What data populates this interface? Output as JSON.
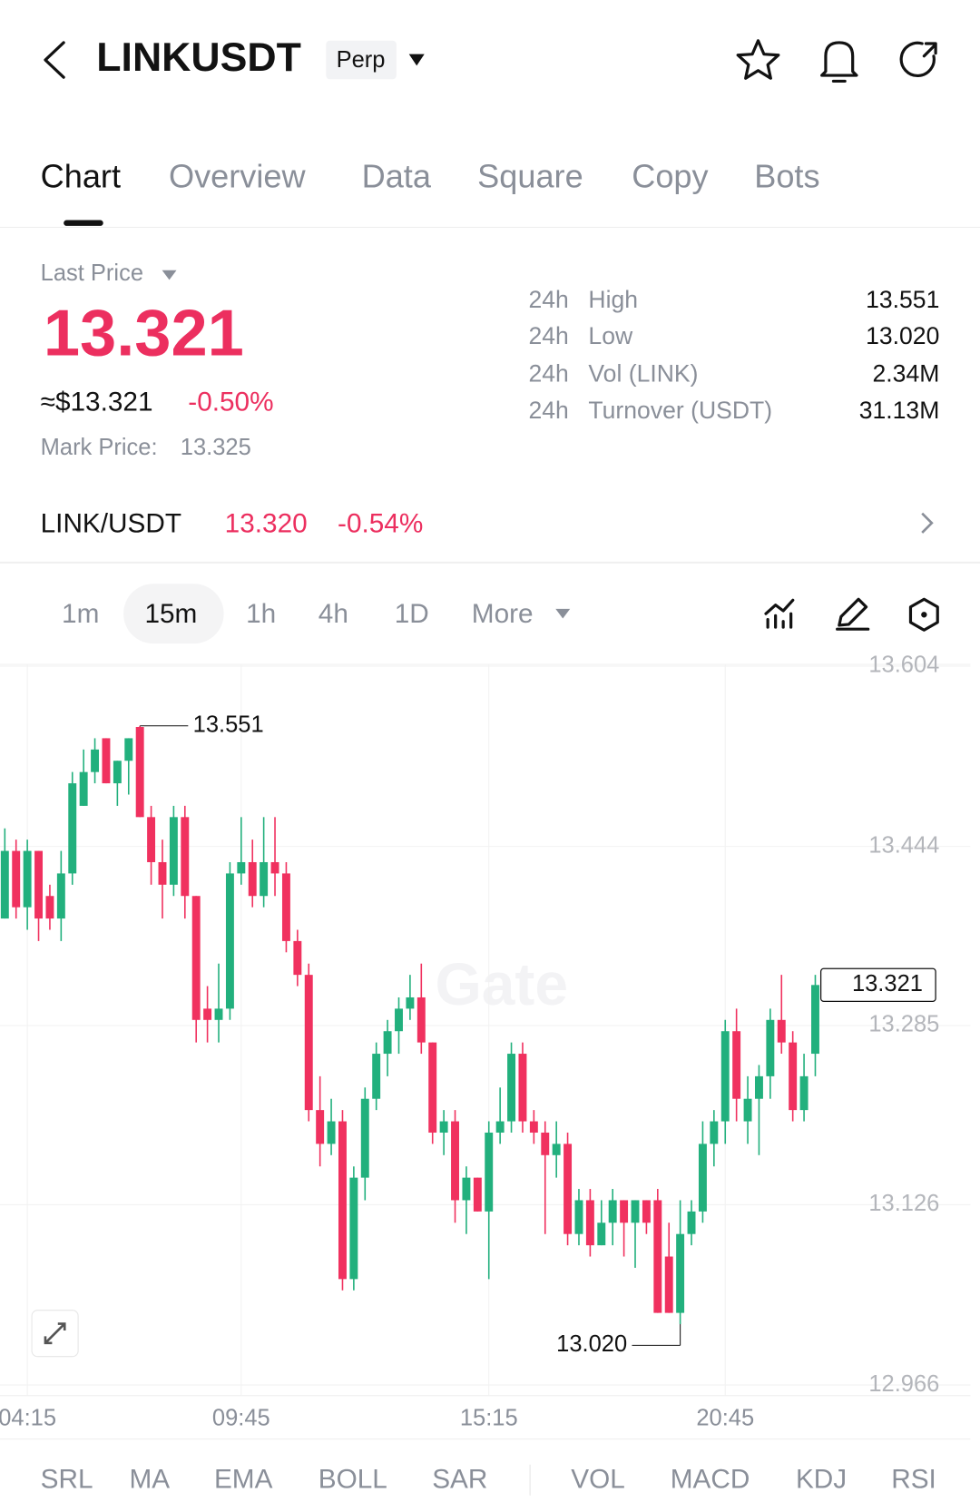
{
  "header": {
    "symbol": "LINKUSDT",
    "badge": "Perp"
  },
  "tabs": [
    "Chart",
    "Overview",
    "Data",
    "Square",
    "Copy",
    "Bots"
  ],
  "price": {
    "label": "Last Price",
    "last": "13.321",
    "fiat": "≈$13.321",
    "change": "-0.50%",
    "mark_label": "Mark Price:",
    "mark": "13.325"
  },
  "stats": [
    {
      "period": "24h",
      "label": "High",
      "value": "13.551"
    },
    {
      "period": "24h",
      "label": "Low",
      "value": "13.020"
    },
    {
      "period": "24h",
      "label": "Vol (LINK)",
      "value": "2.34M"
    },
    {
      "period": "24h",
      "label": "Turnover (USDT)",
      "value": "31.13M"
    }
  ],
  "spot": {
    "pair": "LINK/USDT",
    "price": "13.320",
    "change": "-0.54%"
  },
  "intervals": [
    "1m",
    "15m",
    "1h",
    "4h",
    "1D",
    "More"
  ],
  "chart_data": {
    "type": "candlestick",
    "watermark": "Gate",
    "up_color": "#22b07d",
    "down_color": "#f0315f",
    "grid": true,
    "categories": [
      null,
      null,
      "04:15",
      null,
      null,
      null,
      null,
      null,
      null,
      null,
      null,
      null,
      null,
      null,
      null,
      null,
      null,
      null,
      null,
      null,
      null,
      "09:45",
      null,
      null,
      null,
      null,
      null,
      null,
      null,
      null,
      null,
      null,
      null,
      null,
      null,
      null,
      null,
      null,
      null,
      null,
      null,
      null,
      null,
      "15:15",
      null,
      null,
      null,
      null,
      null,
      null,
      null,
      null,
      null,
      null,
      null,
      null,
      null,
      null,
      null,
      null,
      null,
      null,
      null,
      null,
      "20:45",
      null,
      null,
      null,
      null,
      null,
      null,
      null,
      null
    ],
    "open": [
      13.38,
      13.44,
      13.39,
      13.44,
      13.4,
      13.38,
      13.42,
      13.48,
      13.51,
      13.54,
      13.5,
      13.52,
      13.55,
      13.47,
      13.43,
      13.41,
      13.47,
      13.4,
      13.3,
      13.29,
      13.3,
      13.42,
      13.43,
      13.4,
      13.43,
      13.42,
      13.36,
      13.33,
      13.21,
      13.18,
      13.2,
      13.06,
      13.15,
      13.22,
      13.26,
      13.28,
      13.3,
      13.31,
      13.27,
      13.19,
      13.2,
      13.13,
      13.15,
      13.12,
      13.19,
      13.2,
      13.26,
      13.2,
      13.19,
      13.17,
      13.18,
      13.1,
      13.13,
      13.09,
      13.11,
      13.13,
      13.11,
      13.13,
      13.13,
      13.08,
      13.03,
      13.1,
      13.12,
      13.18,
      13.2,
      13.28,
      13.2,
      13.22,
      13.24,
      13.29,
      13.27,
      13.21,
      13.26
    ],
    "high": [
      13.46,
      13.45,
      13.45,
      13.44,
      13.41,
      13.44,
      13.51,
      13.53,
      13.54,
      13.54,
      13.52,
      13.54,
      13.551,
      13.48,
      13.45,
      13.48,
      13.48,
      13.4,
      13.32,
      13.34,
      13.43,
      13.47,
      13.45,
      13.47,
      13.47,
      13.43,
      13.37,
      13.34,
      13.24,
      13.22,
      13.21,
      13.16,
      13.23,
      13.27,
      13.29,
      13.31,
      13.33,
      13.34,
      13.27,
      13.21,
      13.21,
      13.16,
      13.15,
      13.2,
      13.23,
      13.27,
      13.27,
      13.21,
      13.2,
      13.2,
      13.19,
      13.14,
      13.14,
      13.13,
      13.14,
      13.13,
      13.13,
      13.13,
      13.14,
      13.11,
      13.13,
      13.13,
      13.2,
      13.21,
      13.29,
      13.3,
      13.24,
      13.25,
      13.3,
      13.33,
      13.28,
      13.26,
      13.33
    ],
    "low": [
      13.38,
      13.38,
      13.37,
      13.36,
      13.37,
      13.36,
      13.41,
      13.48,
      13.5,
      13.5,
      13.48,
      13.49,
      13.47,
      13.41,
      13.38,
      13.4,
      13.38,
      13.27,
      13.27,
      13.27,
      13.29,
      13.41,
      13.39,
      13.39,
      13.4,
      13.35,
      13.32,
      13.2,
      13.16,
      13.17,
      13.05,
      13.05,
      13.13,
      13.21,
      13.24,
      13.26,
      13.29,
      13.26,
      13.18,
      13.17,
      13.11,
      13.1,
      13.12,
      13.06,
      13.18,
      13.19,
      13.19,
      13.18,
      13.1,
      13.15,
      13.09,
      13.09,
      13.08,
      13.09,
      13.09,
      13.08,
      13.07,
      13.1,
      13.03,
      13.03,
      13.02,
      13.09,
      13.11,
      13.16,
      13.18,
      13.2,
      13.18,
      13.17,
      13.22,
      13.26,
      13.2,
      13.2,
      13.24
    ],
    "close": [
      13.44,
      13.39,
      13.44,
      13.38,
      13.38,
      13.42,
      13.5,
      13.51,
      13.53,
      13.5,
      13.52,
      13.54,
      13.47,
      13.43,
      13.41,
      13.47,
      13.4,
      13.29,
      13.29,
      13.3,
      13.42,
      13.43,
      13.4,
      13.43,
      13.42,
      13.36,
      13.33,
      13.21,
      13.18,
      13.2,
      13.06,
      13.15,
      13.22,
      13.26,
      13.28,
      13.3,
      13.31,
      13.27,
      13.19,
      13.2,
      13.13,
      13.15,
      13.12,
      13.19,
      13.2,
      13.26,
      13.2,
      13.19,
      13.17,
      13.18,
      13.1,
      13.13,
      13.09,
      13.11,
      13.13,
      13.11,
      13.13,
      13.11,
      13.03,
      13.03,
      13.1,
      13.12,
      13.18,
      13.2,
      13.28,
      13.22,
      13.22,
      13.24,
      13.29,
      13.27,
      13.21,
      13.24,
      13.321
    ],
    "ylim": [
      12.957,
      13.606
    ],
    "yticks": [
      13.604,
      13.444,
      13.285,
      13.126,
      12.966
    ],
    "high_label": {
      "value": 13.551,
      "label": "13.551"
    },
    "low_label": {
      "value": 13.02,
      "label": "13.020"
    },
    "last_label": {
      "value": 13.321,
      "label": "13.321"
    }
  },
  "indicators": [
    "SRL",
    "MA",
    "EMA",
    "BOLL",
    "SAR",
    "VOL",
    "MACD",
    "KDJ",
    "RSI"
  ]
}
